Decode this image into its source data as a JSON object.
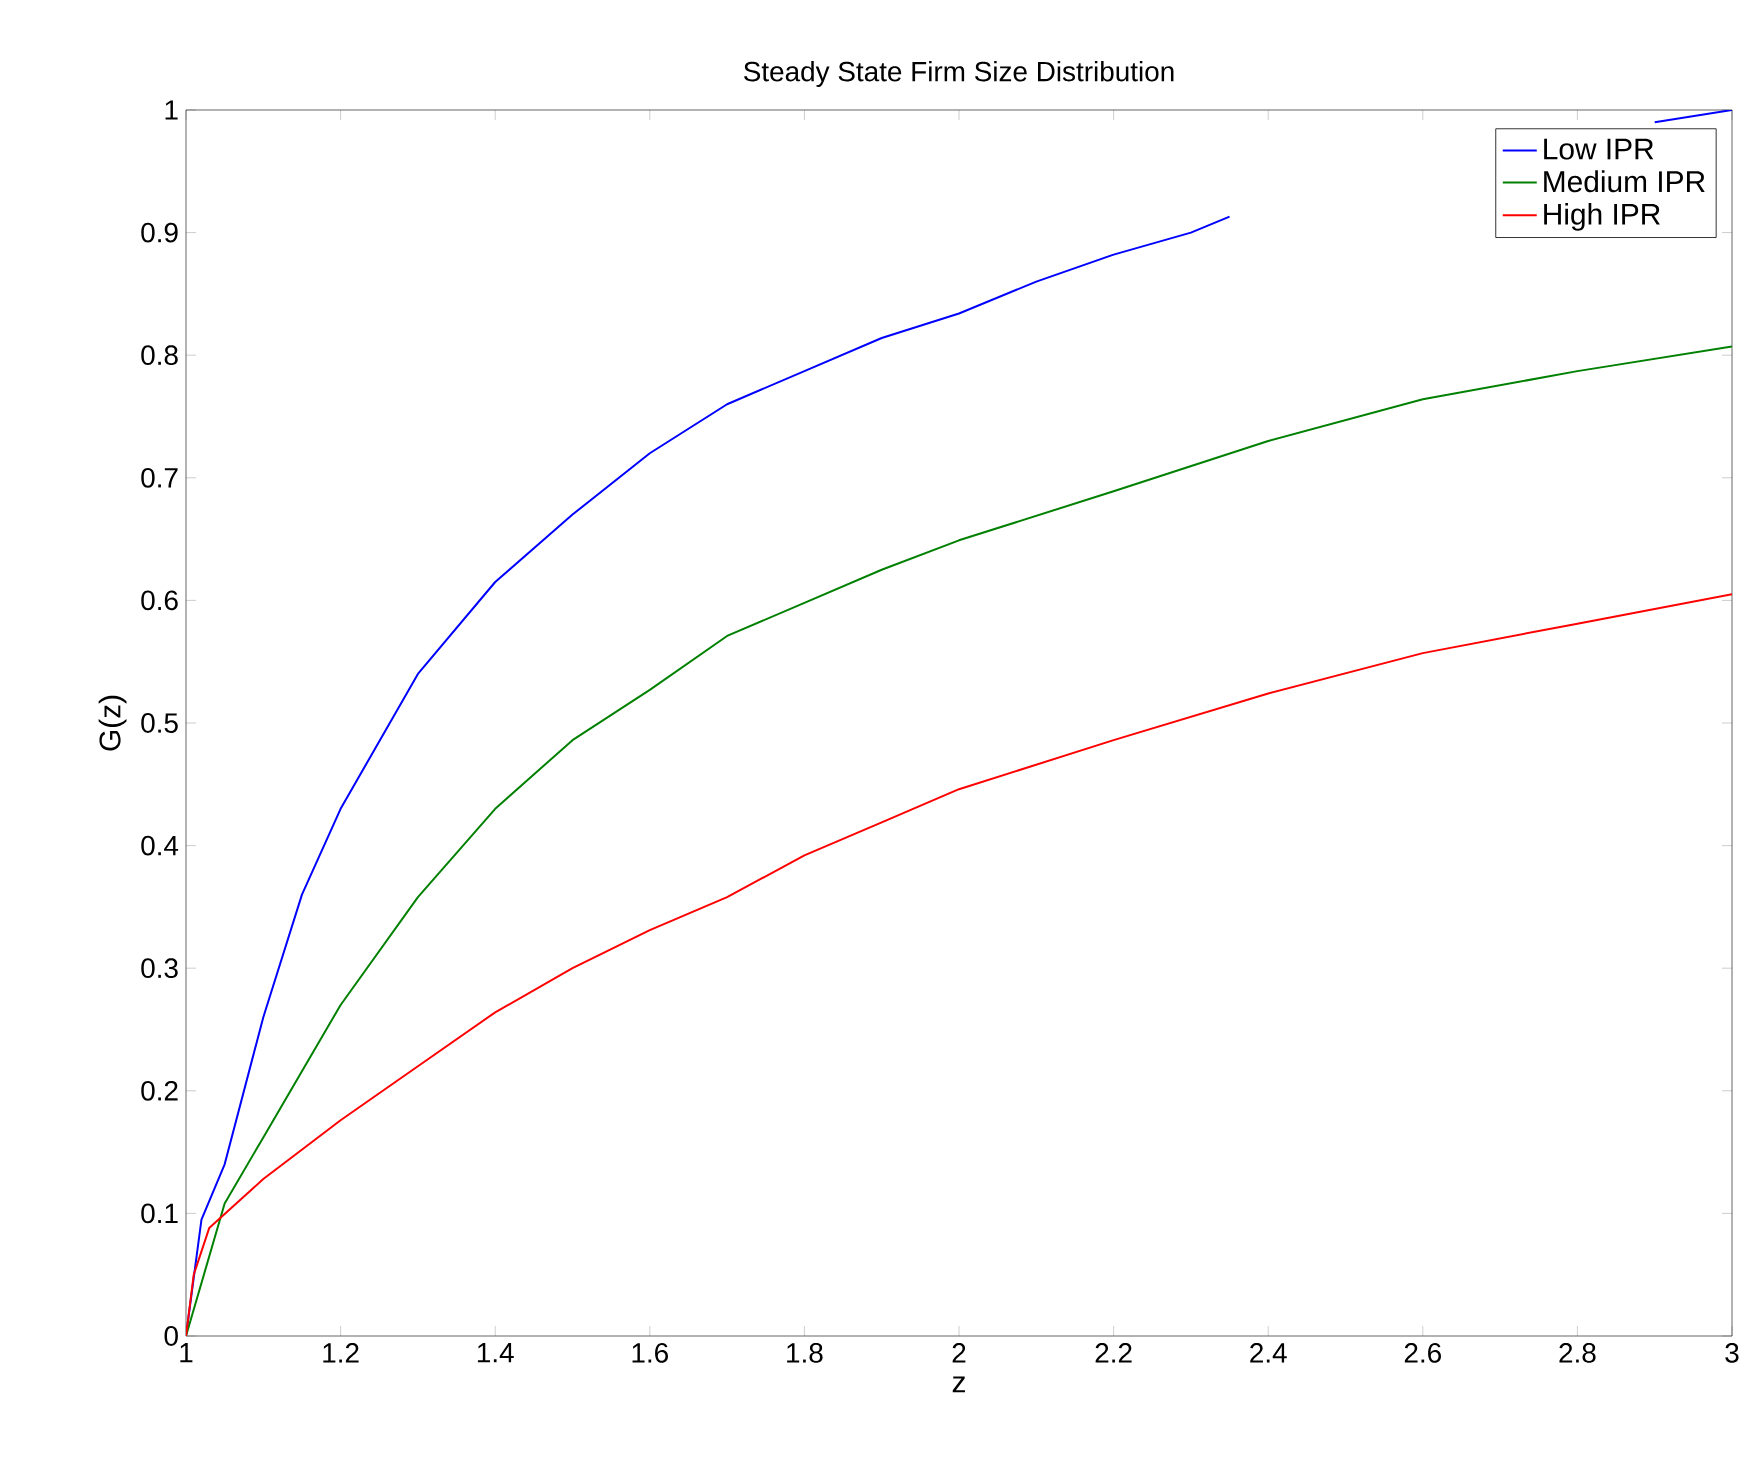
{
  "chart_data": {
    "type": "line",
    "title": "Steady State Firm Size Distribution",
    "xlabel": "z",
    "ylabel": "G(z)",
    "xlim": [
      1,
      3
    ],
    "ylim": [
      0,
      1
    ],
    "xticks": [
      1,
      1.2,
      1.4,
      1.6,
      1.8,
      2,
      2.2,
      2.4,
      2.6,
      2.8,
      3
    ],
    "yticks": [
      0,
      0.1,
      0.2,
      0.3,
      0.4,
      0.5,
      0.6,
      0.7,
      0.8,
      0.9,
      1
    ],
    "legend": "top right",
    "series": [
      {
        "name": "Low IPR",
        "color": "#0000ff",
        "x": [
          1,
          1.02,
          1.05,
          1.1,
          1.15,
          1.2,
          1.3,
          1.4,
          1.5,
          1.6,
          1.7,
          1.8,
          1.9,
          2,
          2.1,
          2.2,
          2.3,
          2.35,
          2.5,
          2.9,
          3
        ],
        "values": [
          0,
          0.095,
          0.14,
          0.26,
          0.36,
          0.43,
          0.54,
          0.615,
          0.67,
          0.72,
          0.76,
          0.787,
          0.814,
          0.834,
          0.86,
          0.882,
          0.9,
          0.913,
          null,
          0.99,
          1
        ]
      },
      {
        "name": "Medium IPR",
        "color": "#008000",
        "x": [
          1,
          1.05,
          1.1,
          1.2,
          1.3,
          1.4,
          1.5,
          1.6,
          1.7,
          1.8,
          1.9,
          2,
          2.2,
          2.4,
          2.6,
          2.8,
          3
        ],
        "values": [
          0,
          0.108,
          0.162,
          0.27,
          0.358,
          0.43,
          0.486,
          0.527,
          0.571,
          0.598,
          0.625,
          0.649,
          0.689,
          0.73,
          0.764,
          0.787,
          0.807
        ]
      },
      {
        "name": "High IPR",
        "color": "#ff0000",
        "x": [
          1,
          1.01,
          1.03,
          1.1,
          1.2,
          1.3,
          1.4,
          1.5,
          1.6,
          1.7,
          1.8,
          1.9,
          2,
          2.2,
          2.4,
          2.6,
          2.8,
          3
        ],
        "values": [
          0,
          0.05,
          0.088,
          0.128,
          0.176,
          0.22,
          0.264,
          0.3,
          0.331,
          0.358,
          0.392,
          0.419,
          0.446,
          0.486,
          0.524,
          0.557,
          0.581,
          0.605
        ]
      }
    ]
  }
}
